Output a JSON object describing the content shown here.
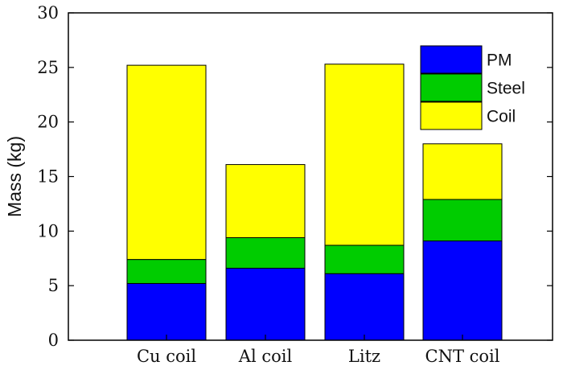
{
  "chart_data": {
    "type": "bar",
    "stacked": true,
    "categories": [
      "Cu coil",
      "Al coil",
      "Litz",
      "CNT coil"
    ],
    "series": [
      {
        "name": "PM",
        "color": "#0000ff",
        "values": [
          5.2,
          6.6,
          6.1,
          9.1
        ]
      },
      {
        "name": "Steel",
        "color": "#00cc00",
        "values": [
          2.2,
          2.8,
          2.6,
          3.8
        ]
      },
      {
        "name": "Coil",
        "color": "#ffff00",
        "values": [
          17.8,
          6.7,
          16.6,
          5.1
        ]
      }
    ],
    "title": "",
    "xlabel": "",
    "ylabel": "Mass (kg)",
    "ylim": [
      0,
      30
    ],
    "yticks": [
      "0",
      "5",
      "10",
      "15",
      "20",
      "25",
      "30"
    ],
    "grid": false,
    "legend": "top-right"
  }
}
